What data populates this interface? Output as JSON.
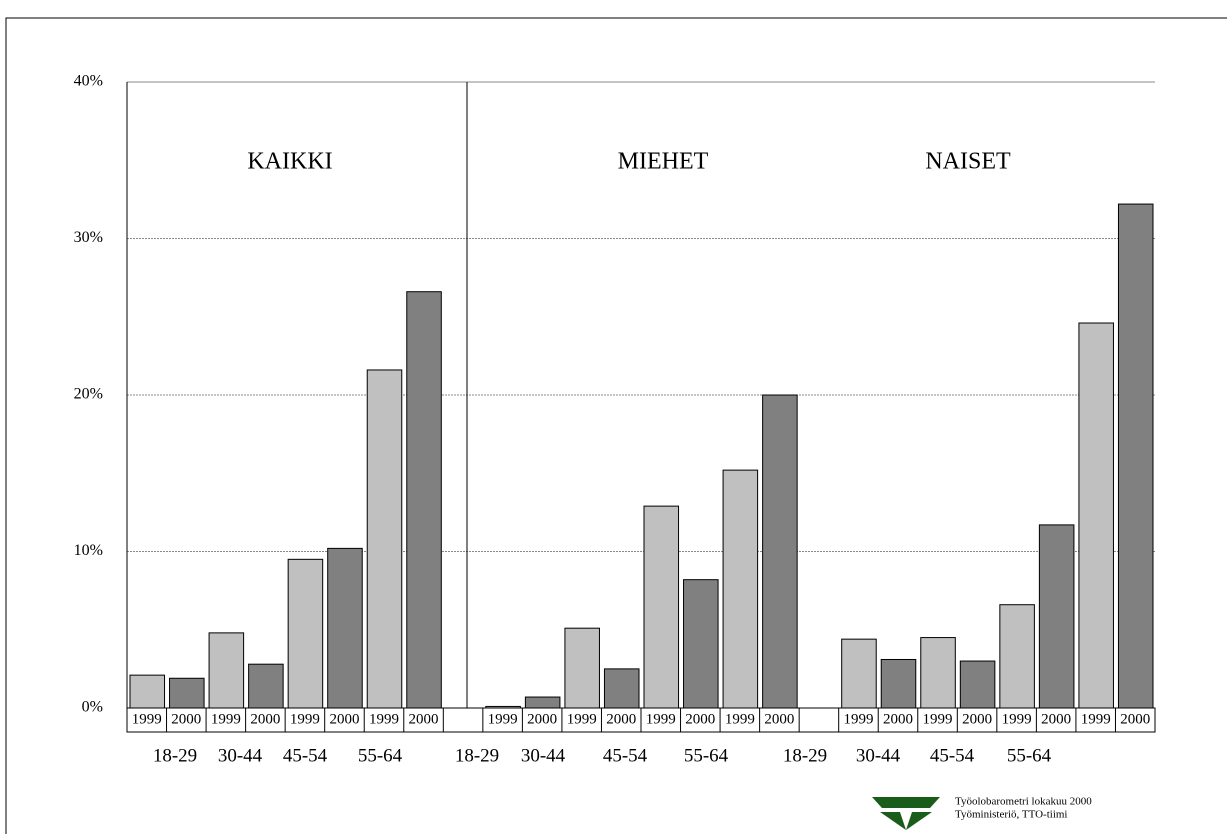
{
  "chart_data": {
    "type": "bar",
    "categories": [
      "1999",
      "2000",
      "1999",
      "2000",
      "1999",
      "2000",
      "1999",
      "2000",
      null,
      "1999",
      "2000",
      "1999",
      "2000",
      "1999",
      "2000",
      "1999",
      "2000",
      null,
      "1999",
      "2000",
      "1999",
      "2000",
      "1999",
      "2000",
      "1999",
      "2000"
    ],
    "values": [
      2.1,
      1.9,
      4.8,
      2.8,
      9.5,
      10.2,
      21.6,
      26.6,
      null,
      0.1,
      0.7,
      5.1,
      2.5,
      12.9,
      8.2,
      15.2,
      20.0,
      null,
      4.4,
      3.1,
      4.5,
      3.0,
      6.6,
      11.7,
      24.6,
      32.2
    ],
    "colors": [
      "#c0c0c0",
      "#808080"
    ],
    "group_labels": [
      "18-29",
      "30-44",
      "45-54",
      "55-64",
      "18-29",
      "30-44",
      "45-54",
      "55-64",
      "18-29",
      "30-44",
      "45-54",
      "55-64"
    ],
    "panel_labels": [
      "KAIKKI",
      "MIEHET",
      "NAISET"
    ],
    "ylim": [
      0,
      40
    ],
    "yticks": [
      {
        "value": 0,
        "label": "0%"
      },
      {
        "value": 10,
        "label": "10%"
      },
      {
        "value": 20,
        "label": "20%"
      },
      {
        "value": 30,
        "label": "30%"
      },
      {
        "value": 40,
        "label": "40%"
      }
    ],
    "grid": true,
    "footer": [
      "Työolobarometri lokakuu 2000",
      "Työministeriö, TTO-tiimi"
    ]
  }
}
